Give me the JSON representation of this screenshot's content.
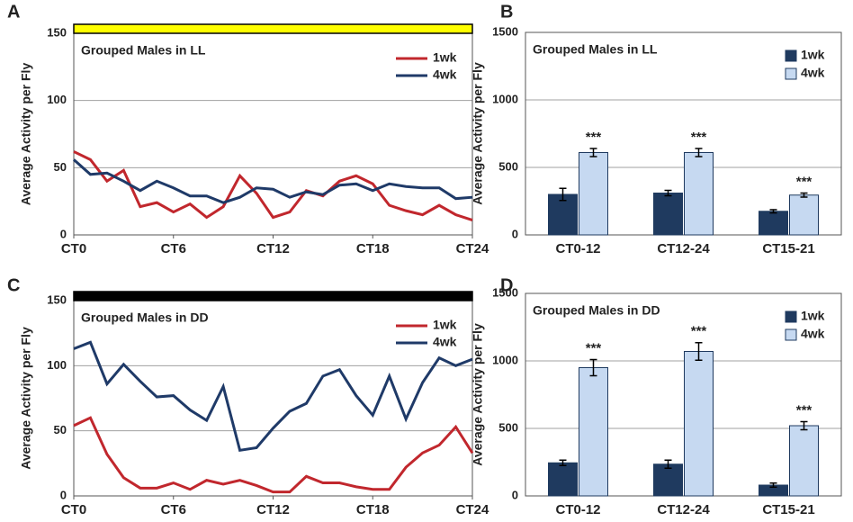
{
  "chart_data": [
    {
      "type": "line",
      "label": "A",
      "title": "Grouped Males in LL",
      "ylabel": "Average Activity per Fly",
      "condition_bar_color": "#ffff00",
      "x": [
        0,
        1,
        2,
        3,
        4,
        5,
        6,
        7,
        8,
        9,
        10,
        11,
        12,
        13,
        14,
        15,
        16,
        17,
        18,
        19,
        20,
        21,
        22,
        23,
        24
      ],
      "series": [
        {
          "name": "1wk",
          "color": "#c1272d",
          "values": [
            62,
            56,
            40,
            48,
            21,
            24,
            17,
            23,
            13,
            21,
            44,
            31,
            13,
            17,
            33,
            29,
            40,
            44,
            38,
            22,
            18,
            15,
            22,
            15,
            11
          ]
        },
        {
          "name": "4wk",
          "color": "#1f3a68",
          "values": [
            56,
            45,
            46,
            40,
            33,
            40,
            35,
            29,
            29,
            24,
            28,
            35,
            34,
            28,
            32,
            30,
            37,
            38,
            33,
            38,
            36,
            35,
            35,
            27,
            28
          ]
        }
      ],
      "xlim": [
        0,
        24
      ],
      "xticks": [
        {
          "value": 0,
          "label": "CT0"
        },
        {
          "value": 6,
          "label": "CT6"
        },
        {
          "value": 12,
          "label": "CT12"
        },
        {
          "value": 18,
          "label": "CT18"
        },
        {
          "value": 24,
          "label": "CT24"
        }
      ],
      "ylim": [
        0,
        150
      ],
      "yticks": [
        0,
        50,
        100,
        150
      ],
      "grid": true,
      "legend": "upper right"
    },
    {
      "type": "bar",
      "label": "B",
      "title": "Grouped Males in LL",
      "ylabel": "Average Activity per Fly",
      "categories": [
        "CT0-12",
        "CT12-24",
        "CT15-21"
      ],
      "series": [
        {
          "name": "1wk",
          "color": "#1f3a5f",
          "values": [
            300,
            310,
            175
          ],
          "errors": [
            45,
            20,
            12
          ]
        },
        {
          "name": "4wk",
          "color": "#c6d9f1",
          "values": [
            610,
            610,
            295
          ],
          "errors": [
            30,
            30,
            15
          ]
        }
      ],
      "annotations": [
        "***",
        "***",
        "***"
      ],
      "ylim": [
        0,
        1500
      ],
      "yticks": [
        0,
        500,
        1000,
        1500
      ],
      "grid": true,
      "legend": "upper right"
    },
    {
      "type": "line",
      "label": "C",
      "title": "Grouped Males in DD",
      "ylabel": "Average Activity per Fly",
      "condition_bar_color": "#000000",
      "x": [
        0,
        1,
        2,
        3,
        4,
        5,
        6,
        7,
        8,
        9,
        10,
        11,
        12,
        13,
        14,
        15,
        16,
        17,
        18,
        19,
        20,
        21,
        22,
        23,
        24
      ],
      "series": [
        {
          "name": "1wk",
          "color": "#c1272d",
          "values": [
            54,
            60,
            32,
            14,
            6,
            6,
            10,
            5,
            12,
            9,
            12,
            8,
            3,
            3,
            15,
            10,
            10,
            7,
            5,
            5,
            22,
            33,
            39,
            53,
            33
          ]
        },
        {
          "name": "4wk",
          "color": "#1f3a68",
          "values": [
            113,
            118,
            86,
            101,
            88,
            76,
            77,
            66,
            58,
            84,
            35,
            37,
            52,
            65,
            71,
            92,
            97,
            77,
            62,
            92,
            59,
            87,
            106,
            100,
            105
          ]
        }
      ],
      "xlim": [
        0,
        24
      ],
      "xticks": [
        {
          "value": 0,
          "label": "CT0"
        },
        {
          "value": 6,
          "label": "CT6"
        },
        {
          "value": 12,
          "label": "CT12"
        },
        {
          "value": 18,
          "label": "CT18"
        },
        {
          "value": 24,
          "label": "CT24"
        }
      ],
      "ylim": [
        0,
        150
      ],
      "yticks": [
        0,
        50,
        100,
        150
      ],
      "grid": true,
      "legend": "upper right"
    },
    {
      "type": "bar",
      "label": "D",
      "title": "Grouped Males in DD",
      "ylabel": "Average Activity per Fly",
      "categories": [
        "CT0-12",
        "CT12-24",
        "CT15-21"
      ],
      "series": [
        {
          "name": "1wk",
          "color": "#1f3a5f",
          "values": [
            245,
            235,
            80
          ],
          "errors": [
            20,
            30,
            15
          ]
        },
        {
          "name": "4wk",
          "color": "#c6d9f1",
          "values": [
            950,
            1070,
            520
          ],
          "errors": [
            60,
            65,
            30
          ]
        }
      ],
      "annotations": [
        "***",
        "***",
        "***"
      ],
      "ylim": [
        0,
        1500
      ],
      "yticks": [
        0,
        500,
        1000,
        1500
      ],
      "grid": true,
      "legend": "upper right"
    }
  ]
}
